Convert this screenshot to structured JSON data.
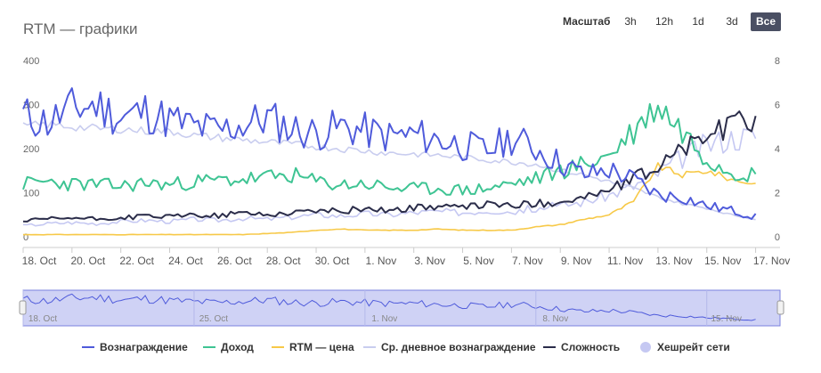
{
  "page": {
    "title": "RTM — графики"
  },
  "zoom": {
    "label": "Масштаб",
    "options": [
      "3h",
      "12h",
      "1d",
      "3d",
      "Все"
    ],
    "selected": "Все"
  },
  "legend": [
    {
      "name": "Вознаграждение",
      "color": "#4f5bdb",
      "kind": "line"
    },
    {
      "name": "Доход",
      "color": "#3ec493",
      "kind": "line"
    },
    {
      "name": "RTM — цена",
      "color": "#f7c948",
      "kind": "line"
    },
    {
      "name": "Ср. дневное вознаграждение",
      "color": "#c9cdef",
      "kind": "line"
    },
    {
      "name": "Сложность",
      "color": "#2b2d4a",
      "kind": "line"
    },
    {
      "name": "Хешрейт сети",
      "color": "#c5c8f2",
      "kind": "dot"
    }
  ],
  "chart_data": {
    "type": "line",
    "x_tick_labels": [
      "18. Oct",
      "20. Oct",
      "22. Oct",
      "24. Oct",
      "26. Oct",
      "28. Oct",
      "30. Oct",
      "1. Nov",
      "3. Nov",
      "5. Nov",
      "7. Nov",
      "9. Nov",
      "11. Nov",
      "13. Nov",
      "15. Nov",
      "17. Nov"
    ],
    "x_range_days": [
      0,
      31
    ],
    "y_left": {
      "ticks": [
        "0",
        "100",
        "200",
        "300",
        "400"
      ],
      "range": [
        0,
        400
      ]
    },
    "y_right": {
      "ticks": [
        "0",
        "2",
        "4",
        "6",
        "8"
      ],
      "range": [
        0,
        8
      ]
    },
    "navigator_ticks": [
      "18. Oct",
      "25. Oct",
      "1. Nov",
      "8. Nov",
      "15. Nov"
    ],
    "grid": false,
    "legend_position": "bottom",
    "series": [
      {
        "name": "Вознаграждение",
        "axis": "left",
        "color": "#4f5bdb",
        "values": [
          275,
          260,
          290,
          300,
          270,
          285,
          265,
          250,
          240,
          255,
          270,
          245,
          235,
          250,
          240,
          228,
          232,
          220,
          208,
          195,
          225,
          200,
          168,
          140,
          152,
          130,
          95,
          90,
          70,
          60,
          45
        ]
      },
      {
        "name": "Доход",
        "axis": "left",
        "color": "#3ec493",
        "values": [
          120,
          125,
          120,
          118,
          115,
          122,
          118,
          125,
          128,
          130,
          135,
          140,
          125,
          118,
          120,
          112,
          108,
          110,
          105,
          110,
          120,
          132,
          150,
          165,
          185,
          240,
          300,
          240,
          180,
          150,
          140
        ]
      },
      {
        "name": "RTM — цена",
        "axis": "right",
        "color": "#f7c948",
        "values": [
          0.1,
          0.1,
          0.1,
          0.1,
          0.1,
          0.1,
          0.1,
          0.1,
          0.1,
          0.1,
          0.15,
          0.2,
          0.3,
          0.35,
          0.3,
          0.3,
          0.3,
          0.35,
          0.3,
          0.3,
          0.3,
          0.45,
          0.55,
          0.8,
          1.0,
          1.6,
          3.2,
          2.8,
          3.0,
          2.6,
          2.4
        ]
      },
      {
        "name": "Ср. дневное вознаграждение",
        "axis": "left",
        "color": "#c9cdef",
        "values": [
          250,
          255,
          250,
          245,
          245,
          240,
          240,
          230,
          225,
          220,
          215,
          210,
          205,
          200,
          195,
          190,
          188,
          185,
          180,
          175,
          170,
          165,
          150,
          140,
          125,
          110,
          90,
          75,
          65,
          50,
          40
        ]
      },
      {
        "name": "Сложность",
        "axis": "right",
        "color": "#2b2d4a",
        "values": [
          0.7,
          0.8,
          0.85,
          0.8,
          0.85,
          0.95,
          0.9,
          1.0,
          0.95,
          1.1,
          1.0,
          1.1,
          1.2,
          1.15,
          1.3,
          1.2,
          1.3,
          1.4,
          1.3,
          1.5,
          1.4,
          1.5,
          1.6,
          1.8,
          2.1,
          2.6,
          3.2,
          4.0,
          4.6,
          5.0,
          5.4
        ]
      },
      {
        "name": "Хешрейт сети",
        "axis": "right",
        "color": "#c5c8f2",
        "values": [
          0.5,
          0.6,
          0.65,
          0.6,
          0.7,
          0.75,
          0.7,
          0.8,
          0.75,
          0.85,
          0.8,
          0.9,
          1.0,
          0.95,
          1.05,
          1.0,
          1.1,
          1.15,
          1.1,
          1.2,
          1.15,
          1.3,
          1.4,
          1.6,
          1.9,
          2.3,
          2.9,
          3.6,
          4.2,
          4.5,
          4.6
        ]
      }
    ]
  }
}
